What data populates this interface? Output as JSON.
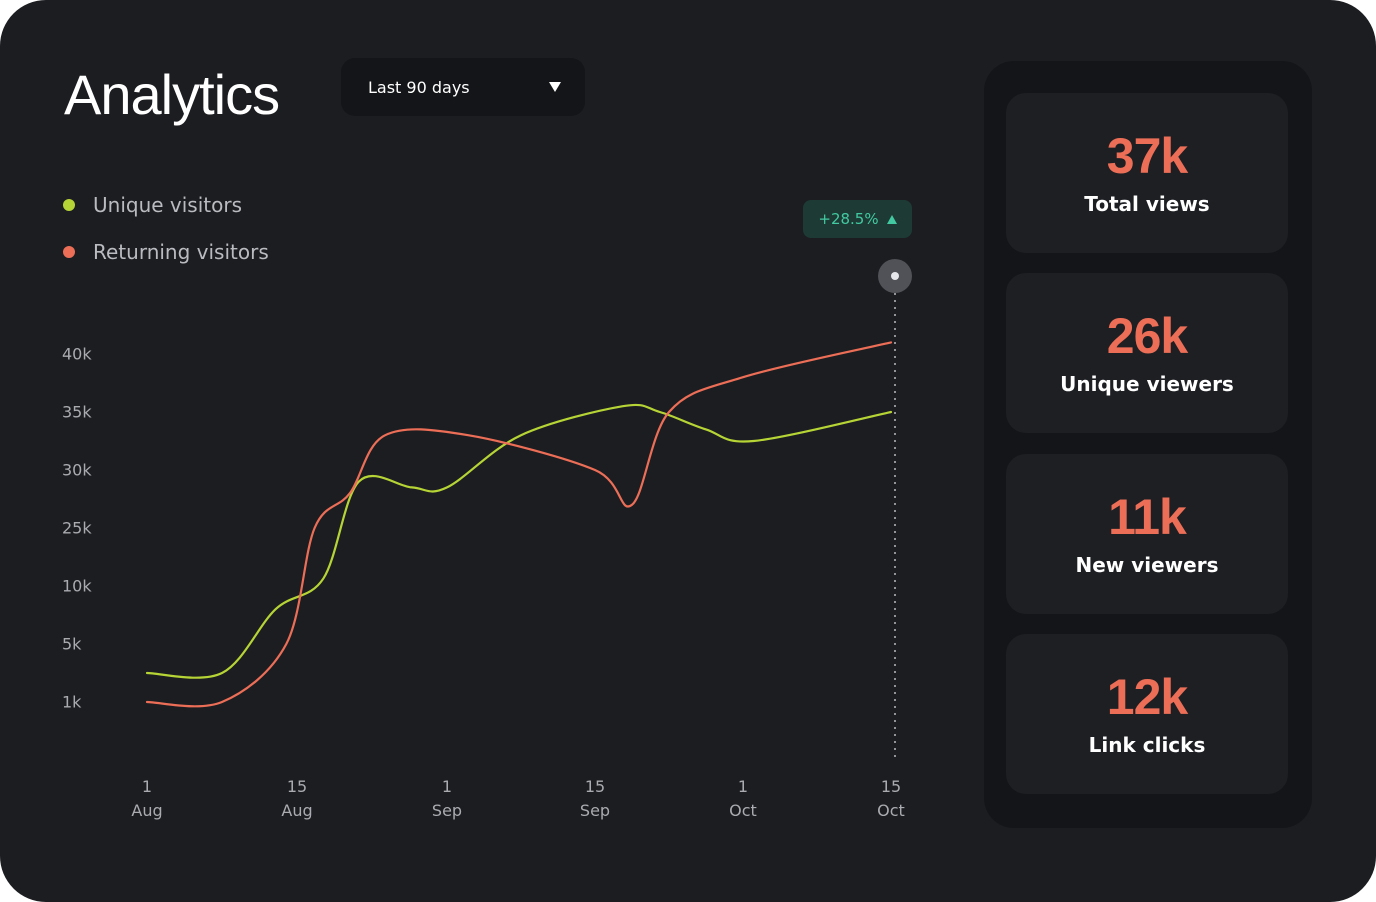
{
  "header": {
    "title": "Analytics",
    "range_select": {
      "value": "Last 90 days"
    }
  },
  "legend": [
    {
      "label": "Unique visitors",
      "color": "#b6d435"
    },
    {
      "label": "Returning visitors",
      "color": "#ec6e57"
    }
  ],
  "badge": {
    "text": "+28.5%",
    "icon": "triangle-up-icon",
    "color": "#42c9a2"
  },
  "chart_data": {
    "type": "line",
    "x": [
      "1 Aug",
      "15 Aug",
      "1 Sep",
      "15 Sep",
      "1 Oct",
      "15 Oct"
    ],
    "y_ticks": [
      "40k",
      "35k",
      "30k",
      "25k",
      "10k",
      "5k",
      "1k"
    ],
    "series": [
      {
        "name": "Unique visitors",
        "color": "#b6d435",
        "points": [
          [
            "1 Aug",
            "3k"
          ],
          [
            "8 Aug",
            "3k"
          ],
          [
            "13 Aug",
            "8k"
          ],
          [
            "18 Aug",
            "12k"
          ],
          [
            "22 Aug",
            "29k"
          ],
          [
            "28 Aug",
            "28.5k"
          ],
          [
            "1 Sep",
            "28.5k"
          ],
          [
            "8 Sep",
            "33k"
          ],
          [
            "18 Sep",
            "35.5k"
          ],
          [
            "22 Sep",
            "35k"
          ],
          [
            "27 Sep",
            "33.5k"
          ],
          [
            "2 Oct",
            "32.5k"
          ],
          [
            "15 Oct",
            "35k"
          ]
        ]
      },
      {
        "name": "Returning visitors",
        "color": "#ec6e57",
        "points": [
          [
            "1 Aug",
            "1k"
          ],
          [
            "8 Aug",
            "1k"
          ],
          [
            "14 Aug",
            "5k"
          ],
          [
            "17 Aug",
            "25k"
          ],
          [
            "21 Aug",
            "28k"
          ],
          [
            "25 Aug",
            "33k"
          ],
          [
            "3 Sep",
            "33k"
          ],
          [
            "15 Sep",
            "30k"
          ],
          [
            "19 Sep",
            "27k"
          ],
          [
            "23 Sep",
            "35k"
          ],
          [
            "1 Oct",
            "38k"
          ],
          [
            "15 Oct",
            "41k"
          ]
        ]
      }
    ]
  },
  "stats": [
    {
      "value": "37k",
      "label": "Total views"
    },
    {
      "value": "26k",
      "label": "Unique viewers"
    },
    {
      "value": "11k",
      "label": "New viewers"
    },
    {
      "value": "12k",
      "label": "Link clicks"
    }
  ]
}
